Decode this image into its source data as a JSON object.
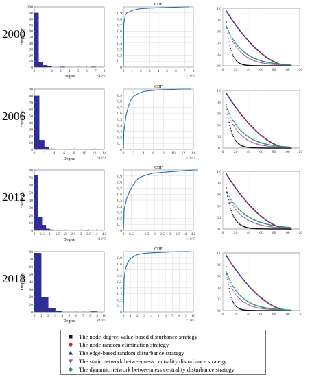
{
  "legend": [
    {
      "label": "The node-degree-value-based disturbance strategy",
      "color": "#111111",
      "marker": "square"
    },
    {
      "label": "The node random elimination strategy",
      "color": "#d62728",
      "marker": "circle"
    },
    {
      "label": "The edge-based random disturbance strategy",
      "color": "#2b3a9c",
      "marker": "triangle-up"
    },
    {
      "label": "The static network betweenness centrality disturbance strategy",
      "color": "#a24bb5",
      "marker": "triangle-down"
    },
    {
      "label": "The dynamic network betweenness centrality disturbance strategy",
      "color": "#1f9a6a",
      "marker": "diamond"
    }
  ],
  "chart_data": [
    {
      "type": "bar",
      "year": "2000",
      "panel": "histogram",
      "xlabel": "Degree",
      "ylabel": "Frequency",
      "x_ticks": [
        "0",
        "1",
        "2",
        "3",
        "4",
        "5",
        "6",
        "7",
        "8"
      ],
      "x_multiplier": "×10^4",
      "ylim": [
        0,
        100
      ],
      "y_ticks": [
        "0",
        "10",
        "20",
        "30",
        "40",
        "50",
        "60",
        "70",
        "80",
        "90",
        "100"
      ],
      "bin_width": 0.5,
      "values": [
        90,
        8,
        3,
        1,
        0,
        0,
        0.5,
        0,
        0,
        0,
        0,
        0,
        0,
        0.3,
        0,
        0
      ]
    },
    {
      "type": "line",
      "year": "2000",
      "panel": "cdf",
      "title": "CDF",
      "x_ticks": [
        "0",
        "1",
        "2",
        "3",
        "4",
        "5",
        "6",
        "7",
        "8"
      ],
      "x_multiplier": "×10^4",
      "xlim": [
        0,
        8
      ],
      "ylim": [
        0,
        1
      ],
      "y_ticks": [
        "0",
        "0.1",
        "0.2",
        "0.3",
        "0.4",
        "0.5",
        "0.6",
        "0.7",
        "0.8",
        "0.9",
        "1"
      ],
      "x": [
        0,
        0.05,
        0.2,
        0.4,
        0.7,
        1,
        1.5,
        2,
        3,
        4,
        5,
        6,
        7,
        7.5
      ],
      "y": [
        0,
        0.72,
        0.86,
        0.9,
        0.92,
        0.94,
        0.96,
        0.97,
        0.98,
        0.985,
        0.99,
        0.995,
        1,
        1
      ]
    },
    {
      "type": "scatter",
      "year": "2000",
      "panel": "robustness",
      "x_ticks": [
        "0",
        "20",
        "40",
        "60",
        "80",
        "100",
        "120"
      ],
      "y_ticks": [
        "0.0",
        "0.2",
        "0.4",
        "0.6",
        "0.8",
        "1.0"
      ],
      "xlim": [
        0,
        120
      ],
      "ylim": [
        0,
        1
      ],
      "curves": {
        "degree": {
          "k": 0.08,
          "start": 0.8
        },
        "random": {
          "k": 0.018,
          "start": 1.0
        },
        "edge": {
          "k": 0.018,
          "start": 1.0
        },
        "static": {
          "k": 0.04,
          "start": 0.72
        },
        "dynamic": {
          "k": 0.035,
          "start": 0.72
        }
      }
    },
    {
      "type": "bar",
      "year": "2006",
      "panel": "histogram",
      "xlabel": "Degree",
      "ylabel": "Frequency",
      "x_ticks": [
        "0",
        "2",
        "4",
        "6",
        "8",
        "10",
        "12",
        "14"
      ],
      "x_multiplier": "×10^4",
      "ylim": [
        0,
        90
      ],
      "y_ticks": [
        "0",
        "10",
        "20",
        "30",
        "40",
        "50",
        "60",
        "70",
        "80",
        "90"
      ],
      "bin_width": 1,
      "values": [
        80,
        14,
        4,
        1,
        0,
        0,
        0,
        0,
        0,
        0,
        0,
        0.5,
        0,
        0
      ]
    },
    {
      "type": "line",
      "year": "2006",
      "panel": "cdf",
      "title": "CDF",
      "x_ticks": [
        "0",
        "2",
        "4",
        "6",
        "8",
        "10",
        "12",
        "14"
      ],
      "x_multiplier": "×10^4",
      "xlim": [
        0,
        14
      ],
      "ylim": [
        0,
        1
      ],
      "y_ticks": [
        "0",
        "0.1",
        "0.2",
        "0.3",
        "0.4",
        "0.5",
        "0.6",
        "0.7",
        "0.8",
        "0.9",
        "1"
      ],
      "x": [
        0,
        0.1,
        0.5,
        1,
        1.5,
        2,
        3,
        4,
        6,
        8,
        10,
        12,
        13.5
      ],
      "y": [
        0,
        0.3,
        0.55,
        0.72,
        0.82,
        0.88,
        0.93,
        0.96,
        0.98,
        0.99,
        0.995,
        1,
        1
      ]
    },
    {
      "type": "scatter",
      "year": "2006",
      "panel": "robustness",
      "x_ticks": [
        "0",
        "20",
        "40",
        "60",
        "80",
        "100",
        "120"
      ],
      "y_ticks": [
        "0.0",
        "0.2",
        "0.4",
        "0.6",
        "0.8",
        "1.0"
      ],
      "xlim": [
        0,
        120
      ],
      "ylim": [
        0,
        1
      ],
      "curves": {
        "degree": {
          "k": 0.07,
          "start": 0.8
        },
        "random": {
          "k": 0.018,
          "start": 1.0
        },
        "edge": {
          "k": 0.018,
          "start": 1.0
        },
        "static": {
          "k": 0.04,
          "start": 0.7
        },
        "dynamic": {
          "k": 0.035,
          "start": 0.75
        }
      }
    },
    {
      "type": "bar",
      "year": "2012",
      "panel": "histogram",
      "xlabel": "Degree",
      "ylabel": "Frequency",
      "x_ticks": [
        "0",
        "0.5",
        "1",
        "1.5",
        "2",
        "2.5",
        "3",
        "3.5",
        "4",
        "4.5"
      ],
      "x_multiplier": "×10^5",
      "ylim": [
        0,
        80
      ],
      "y_ticks": [
        "0",
        "10",
        "20",
        "30",
        "40",
        "50",
        "60",
        "70",
        "80"
      ],
      "bin_width": 0.25,
      "values": [
        73,
        18,
        7,
        2,
        1,
        0,
        0.5,
        0,
        0,
        0,
        0,
        0,
        0,
        0.5,
        0,
        0,
        0,
        0
      ]
    },
    {
      "type": "line",
      "year": "2012",
      "panel": "cdf",
      "title": "CDF",
      "x_ticks": [
        "0",
        "0.5",
        "1",
        "1.5",
        "2",
        "2.5",
        "3",
        "3.5",
        "4",
        "4.5"
      ],
      "x_multiplier": "×10^5",
      "xlim": [
        0,
        5
      ],
      "ylim": [
        0,
        1
      ],
      "y_ticks": [
        "0",
        "0.1",
        "0.2",
        "0.3",
        "0.4",
        "0.5",
        "0.6",
        "0.7",
        "0.8",
        "0.9",
        "1"
      ],
      "x": [
        0,
        0.05,
        0.2,
        0.4,
        0.6,
        0.8,
        1,
        1.5,
        2,
        2.5,
        3,
        3.5,
        4,
        4.5,
        4.8
      ],
      "y": [
        0,
        0.35,
        0.52,
        0.65,
        0.74,
        0.82,
        0.87,
        0.92,
        0.95,
        0.96,
        0.97,
        0.98,
        0.99,
        1,
        1
      ]
    },
    {
      "type": "scatter",
      "year": "2012",
      "panel": "robustness",
      "x_ticks": [
        "0",
        "20",
        "40",
        "60",
        "80",
        "100",
        "120"
      ],
      "y_ticks": [
        "0.0",
        "0.2",
        "0.4",
        "0.6",
        "0.8",
        "1.0"
      ],
      "xlim": [
        0,
        120
      ],
      "ylim": [
        0,
        1
      ],
      "curves": {
        "degree": {
          "k": 0.06,
          "start": 0.75
        },
        "random": {
          "k": 0.018,
          "start": 1.0
        },
        "edge": {
          "k": 0.018,
          "start": 1.0
        },
        "static": {
          "k": 0.035,
          "start": 0.65
        },
        "dynamic": {
          "k": 0.03,
          "start": 0.68
        }
      }
    },
    {
      "type": "bar",
      "year": "2018",
      "panel": "histogram",
      "xlabel": "Degree",
      "ylabel": "Frequency",
      "x_ticks": [
        "0",
        "1",
        "2",
        "3",
        "4",
        "5",
        "6",
        "7",
        "8",
        "9",
        "10"
      ],
      "x_multiplier": "×10^5",
      "ylim": [
        0,
        80
      ],
      "y_ticks": [
        "0",
        "10",
        "20",
        "30",
        "40",
        "50",
        "60",
        "70",
        "80"
      ],
      "bin_width": 1,
      "values": [
        78,
        19,
        5,
        1,
        0,
        0,
        0,
        0,
        0.5,
        0
      ]
    },
    {
      "type": "line",
      "year": "2018",
      "panel": "cdf",
      "title": "CDF",
      "x_ticks": [
        "0",
        "1",
        "2",
        "3",
        "4",
        "5",
        "6",
        "7",
        "8",
        "9",
        "10"
      ],
      "x_multiplier": "×10^5",
      "xlim": [
        0,
        10
      ],
      "ylim": [
        0,
        1
      ],
      "y_ticks": [
        "0",
        "0.1",
        "0.2",
        "0.3",
        "0.4",
        "0.5",
        "0.6",
        "0.7",
        "0.8",
        "0.9",
        "1"
      ],
      "x": [
        0,
        0.1,
        0.3,
        0.6,
        1,
        1.5,
        2,
        3,
        4,
        6,
        8,
        9.5
      ],
      "y": [
        0,
        0.55,
        0.72,
        0.82,
        0.88,
        0.92,
        0.95,
        0.97,
        0.98,
        0.99,
        1,
        1
      ]
    },
    {
      "type": "scatter",
      "year": "2018",
      "panel": "robustness",
      "x_ticks": [
        "0",
        "20",
        "40",
        "60",
        "80",
        "100",
        "120"
      ],
      "y_ticks": [
        "0.0",
        "0.2",
        "0.4",
        "0.6",
        "0.8",
        "1.0"
      ],
      "xlim": [
        0,
        120
      ],
      "ylim": [
        0,
        1
      ],
      "curves": {
        "degree": {
          "k": 0.09,
          "start": 0.8
        },
        "random": {
          "k": 0.018,
          "start": 1.0
        },
        "edge": {
          "k": 0.018,
          "start": 1.0
        },
        "static": {
          "k": 0.045,
          "start": 0.65
        },
        "dynamic": {
          "k": 0.04,
          "start": 0.7
        }
      }
    }
  ]
}
